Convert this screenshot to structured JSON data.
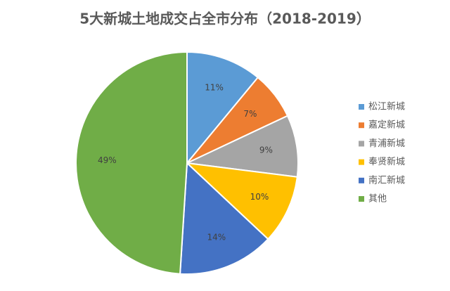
{
  "chart_data": {
    "type": "pie",
    "title": "5大新城土地成交占全市分布（2018-2019）",
    "categories": [
      "松江新城",
      "嘉定新城",
      "青浦新城",
      "奉贤新城",
      "南汇新城",
      "其他"
    ],
    "values": [
      11,
      7,
      9,
      10,
      14,
      49
    ],
    "value_labels": [
      "11%",
      "7%",
      "9%",
      "10%",
      "14%",
      "49%"
    ],
    "colors": [
      "#5b9bd5",
      "#ed7d31",
      "#a5a5a5",
      "#ffc000",
      "#4472c4",
      "#70ad47"
    ],
    "legend": "right"
  }
}
